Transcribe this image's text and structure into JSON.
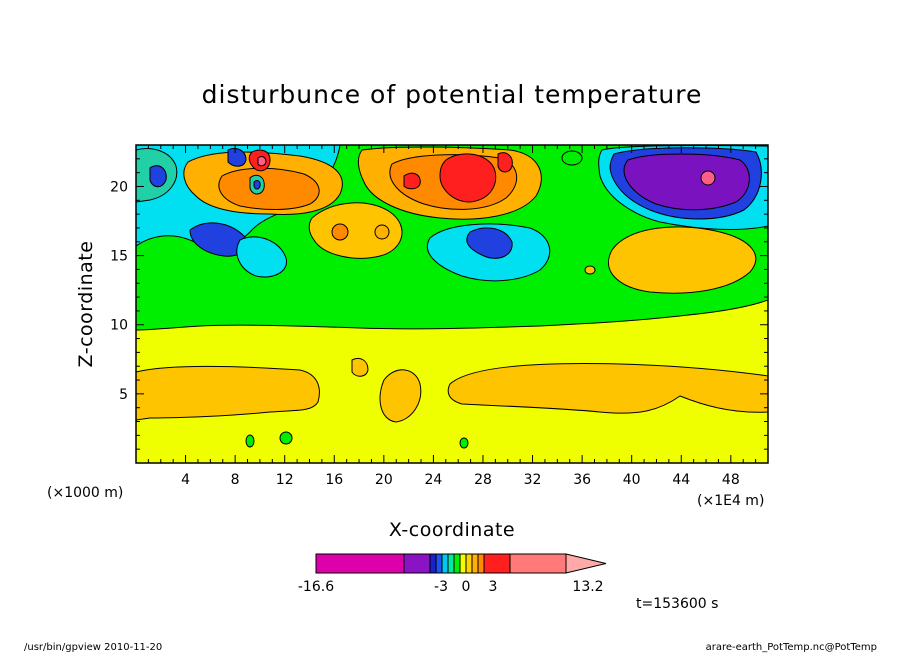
{
  "chart_data": {
    "type": "heatmap",
    "title": "disturbunce of potential temperature",
    "xlabel": "X-coordinate",
    "ylabel": "Z-coordinate",
    "x_unit_left": "(×1000 m)",
    "x_unit_right": "(×1E4 m)",
    "xlim": [
      0,
      51
    ],
    "ylim": [
      0,
      23
    ],
    "xticks": [
      4,
      8,
      12,
      16,
      20,
      24,
      28,
      32,
      36,
      40,
      44,
      48
    ],
    "yticks": [
      5,
      10,
      15,
      20
    ],
    "time_label": "t=153600 s",
    "colorbar": {
      "min_label": "-16.6",
      "max_label": "13.2",
      "mid_labels": [
        "-3",
        "0",
        "3"
      ],
      "colors": [
        "#dd00aa",
        "#8a14c4",
        "#1a22c8",
        "#1a55ee",
        "#00c8f0",
        "#00e9a0",
        "#00ee00",
        "#f0ff00",
        "#ffd400",
        "#ffb000",
        "#ff8a00",
        "#ff1f1f",
        "#ff7a78",
        "#ffaaa8"
      ]
    },
    "field_colors": {
      "yellow": "#f0ff00",
      "gold": "#ffc400",
      "green": "#00ee00",
      "cyan": "#00e0f0",
      "teal": "#22d0a8",
      "blue": "#2040e0",
      "purple": "#7a12c0",
      "orange": "#ff8a00",
      "light_orange": "#ffb000",
      "red": "#ff1f1f",
      "pink": "#ff5e86"
    }
  },
  "footer": {
    "left": "/usr/bin/gpview   2010-11-20",
    "right": "arare-earth_PotTemp.nc@PotTemp"
  }
}
